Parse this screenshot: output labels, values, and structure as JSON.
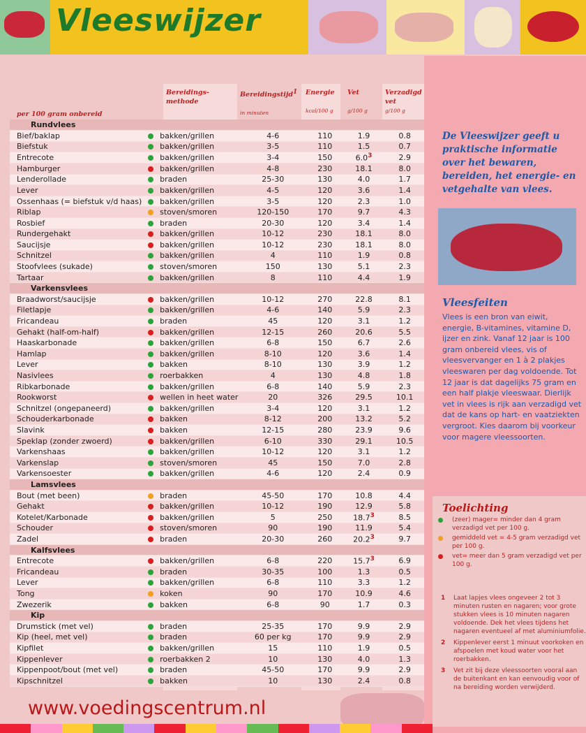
{
  "title": "Vleeswijzer",
  "colors": {
    "green": "#2aa33a",
    "orange": "#f0a020",
    "red": "#d81e1e"
  },
  "headers": {
    "per": "per 100 gram onbereid",
    "method": "Bereidings- methode",
    "time": "Bereidingstijd",
    "time_sup": "1",
    "time_unit": "in minuten",
    "energy": "Energie",
    "energy_unit": "kcal/100 g",
    "fat": "Vet",
    "fat_unit": "g/100 g",
    "sat": "Verzadigd vet",
    "sat_unit": "g/100 g"
  },
  "sections": [
    {
      "name": "Rundvlees",
      "rows": [
        [
          "Bief/baklap",
          "green",
          "bakken/grillen",
          "4-6",
          "110",
          "1.9",
          "",
          "0.8"
        ],
        [
          "Biefstuk",
          "green",
          "bakken/grillen",
          "3-5",
          "110",
          "1.5",
          "",
          "0.7"
        ],
        [
          "Entrecote",
          "green",
          "bakken/grillen",
          "3-4",
          "150",
          "6.0",
          "3",
          "2.9"
        ],
        [
          "Hamburger",
          "red",
          "bakken/grillen",
          "4-8",
          "230",
          "18.1",
          "",
          "8.0"
        ],
        [
          "Lenderollade",
          "green",
          "braden",
          "25-30",
          "130",
          "4.0",
          "",
          "1.7"
        ],
        [
          "Lever",
          "green",
          "bakken/grillen",
          "4-5",
          "120",
          "3.6",
          "",
          "1.4"
        ],
        [
          "Ossenhaas (= biefstuk v/d haas)",
          "green",
          "bakken/grillen",
          "3-5",
          "120",
          "2.3",
          "",
          "1.0"
        ],
        [
          "Riblap",
          "orange",
          "stoven/smoren",
          "120-150",
          "170",
          "9.7",
          "",
          "4.3"
        ],
        [
          "Rosbief",
          "green",
          "braden",
          "20-30",
          "120",
          "3.4",
          "",
          "1.4"
        ],
        [
          "Rundergehakt",
          "red",
          "bakken/grillen",
          "10-12",
          "230",
          "18.1",
          "",
          "8.0"
        ],
        [
          "Saucijsje",
          "red",
          "bakken/grillen",
          "10-12",
          "230",
          "18.1",
          "",
          "8.0"
        ],
        [
          "Schnitzel",
          "green",
          "bakken/grillen",
          "4",
          "110",
          "1.9",
          "",
          "0.8"
        ],
        [
          "Stoofvlees (sukade)",
          "green",
          "stoven/smoren",
          "150",
          "130",
          "5.1",
          "",
          "2.3"
        ],
        [
          "Tartaar",
          "green",
          "bakken/grillen",
          "8",
          "110",
          "4.4",
          "",
          "1.9"
        ]
      ]
    },
    {
      "name": "Varkensvlees",
      "rows": [
        [
          "Braadworst/saucijsje",
          "red",
          "bakken/grillen",
          "10-12",
          "270",
          "22.8",
          "",
          "8.1"
        ],
        [
          "Filetlapje",
          "green",
          "bakken/grillen",
          "4-6",
          "140",
          "5.9",
          "",
          "2.3"
        ],
        [
          "Fricandeau",
          "green",
          "braden",
          "45",
          "120",
          "3.1",
          "",
          "1.2"
        ],
        [
          "Gehakt (half-om-half)",
          "red",
          "bakken/grillen",
          "12-15",
          "260",
          "20.6",
          "",
          "5.5"
        ],
        [
          "Haaskarbonade",
          "green",
          "bakken/grillen",
          "6-8",
          "150",
          "6.7",
          "",
          "2.6"
        ],
        [
          "Hamlap",
          "green",
          "bakken/grillen",
          "8-10",
          "120",
          "3.6",
          "",
          "1.4"
        ],
        [
          "Lever",
          "green",
          "bakken",
          "8-10",
          "130",
          "3.9",
          "",
          "1.2"
        ],
        [
          "Nasivlees",
          "green",
          "roerbakken",
          "4",
          "130",
          "4.8",
          "",
          "1.8"
        ],
        [
          "Ribkarbonade",
          "green",
          "bakken/grillen",
          "6-8",
          "140",
          "5.9",
          "",
          "2.3"
        ],
        [
          "Rookworst",
          "red",
          "wellen in heet water",
          "20",
          "326",
          "29.5",
          "",
          "10.1"
        ],
        [
          "Schnitzel (ongepaneerd)",
          "green",
          "bakken/grillen",
          "3-4",
          "120",
          "3.1",
          "",
          "1.2"
        ],
        [
          "Schouderkarbonade",
          "red",
          "bakken",
          "8-12",
          "200",
          "13.2",
          "",
          "5.2"
        ],
        [
          "Slavink",
          "red",
          "bakken",
          "12-15",
          "280",
          "23.9",
          "",
          "9.6"
        ],
        [
          "Speklap (zonder zwoerd)",
          "red",
          "bakken/grillen",
          "6-10",
          "330",
          "29.1",
          "",
          "10.5"
        ],
        [
          "Varkenshaas",
          "green",
          "bakken/grillen",
          "10-12",
          "120",
          "3.1",
          "",
          "1.2"
        ],
        [
          "Varkenslap",
          "green",
          "stoven/smoren",
          "45",
          "150",
          "7.0",
          "",
          "2.8"
        ],
        [
          "Varkensoester",
          "green",
          "bakken/grillen",
          "4-6",
          "120",
          "2.4",
          "",
          "0.9"
        ]
      ]
    },
    {
      "name": "Lamsvlees",
      "rows": [
        [
          "Bout (met been)",
          "orange",
          "braden",
          "45-50",
          "170",
          "10.8",
          "",
          "4.4"
        ],
        [
          "Gehakt",
          "red",
          "bakken/grillen",
          "10-12",
          "190",
          "12.9",
          "",
          "5.8"
        ],
        [
          "Kotelet/Karbonade",
          "red",
          "bakken/grillen",
          "5",
          "250",
          "18.7",
          "3",
          "8.5"
        ],
        [
          "Schouder",
          "red",
          "stoven/smoren",
          "90",
          "190",
          "11.9",
          "",
          "5.4"
        ],
        [
          "Zadel",
          "red",
          "braden",
          "20-30",
          "260",
          "20.2",
          "3",
          "9.7"
        ]
      ]
    },
    {
      "name": "Kalfsvlees",
      "rows": [
        [
          "Entrecote",
          "red",
          "bakken/grillen",
          "6-8",
          "220",
          "15.7",
          "3",
          "6.9"
        ],
        [
          "Fricandeau",
          "green",
          "braden",
          "30-35",
          "100",
          "1.3",
          "",
          "0.5"
        ],
        [
          "Lever",
          "green",
          "bakken/grillen",
          "6-8",
          "110",
          "3.3",
          "",
          "1.2"
        ],
        [
          "Tong",
          "orange",
          "koken",
          "90",
          "170",
          "10.9",
          "",
          "4.6"
        ],
        [
          "Zwezerik",
          "green",
          "bakken",
          "6-8",
          "90",
          "1.7",
          "",
          "0.3"
        ]
      ]
    },
    {
      "name": "Kip",
      "rows": [
        [
          "Drumstick (met vel)",
          "green",
          "braden",
          "25-35",
          "170",
          "9.9",
          "",
          "2.9"
        ],
        [
          "Kip (heel, met vel)",
          "green",
          "braden",
          "60 per kg",
          "170",
          "9.9",
          "",
          "2.9"
        ],
        [
          "Kipfilet",
          "green",
          "bakken/grillen",
          "15",
          "110",
          "1.9",
          "",
          "0.5"
        ],
        [
          "Kippenlever",
          "green",
          "roerbakken 2",
          "10",
          "130",
          "4.0",
          "",
          "1.3"
        ],
        [
          "Kippenpoot/bout (met vel)",
          "green",
          "braden",
          "45-50",
          "170",
          "9.9",
          "",
          "2.9"
        ],
        [
          "Kipschnitzel",
          "green",
          "bakken",
          "10",
          "130",
          "2.4",
          "",
          "0.8"
        ]
      ]
    }
  ],
  "intro": "De Vleeswijzer geeft u praktische informatie over het bewaren, bereiden, het energie- en vetgehalte van vlees.",
  "facts_title": "Vleesfeiten",
  "facts": "Vlees is een bron van eiwit, energie, B-vitamines, vitamine D, ijzer en zink. Vanaf 12 jaar is 100 gram onbereid vlees, vis of vleesvervanger en 1 à 2 plakjes vleeswaren per dag voldoende. Tot 12 jaar is dat dagelijks 75 gram en een half plakje vleeswaar. Dierlijk vet in vlees is rijk aan verzadigd vet dat de kans op hart- en vaatziekten vergroot. Kies daarom bij voorkeur voor magere vleessoorten.",
  "notes_title": "Toelichting",
  "legend": [
    {
      "color": "green",
      "text": "(zeer) mager= minder dan 4 gram verzadigd vet per 100 g."
    },
    {
      "color": "orange",
      "text": "gemiddeld vet = 4-5 gram verzadigd vet per 100 g."
    },
    {
      "color": "red",
      "text": "vet= meer dan 5 gram verzadigd vet per 100 g."
    }
  ],
  "footnotes": [
    {
      "n": "1",
      "text": "Laat lapjes vlees ongeveer 2 tot 3 minuten rusten en nagaren; voor grote stukken vlees is 10 minuten nagaren voldoende. Dek het vlees tijdens het nagaren eventueel af met aluminiumfolie."
    },
    {
      "n": "2",
      "text": "Kippenlever eerst 1 minuut voorkoken en afspoelen met koud water voor het roerbakken."
    },
    {
      "n": "3",
      "text": "Vet zit bij deze vleessoorten vooral aan de buitenkant en kan eenvoudig voor of na bereiding worden verwijderd."
    }
  ],
  "url": "www.voedingscentrum.nl"
}
